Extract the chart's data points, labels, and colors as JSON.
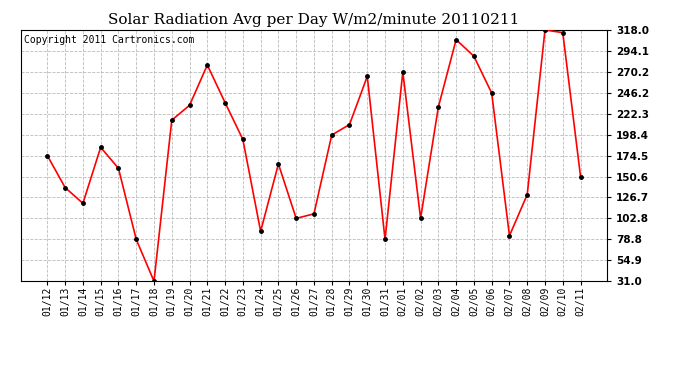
{
  "title": "Solar Radiation Avg per Day W/m2/minute 20110211",
  "copyright": "Copyright 2011 Cartronics.com",
  "dates": [
    "01/12",
    "01/13",
    "01/14",
    "01/15",
    "01/16",
    "01/17",
    "01/18",
    "01/19",
    "01/20",
    "01/21",
    "01/22",
    "01/23",
    "01/24",
    "01/25",
    "01/26",
    "01/27",
    "01/28",
    "01/29",
    "01/30",
    "01/31",
    "02/01",
    "02/02",
    "02/03",
    "02/04",
    "02/05",
    "02/06",
    "02/07",
    "02/08",
    "02/09",
    "02/10",
    "02/11"
  ],
  "values": [
    174.5,
    138.0,
    120.0,
    184.0,
    160.0,
    78.8,
    31.0,
    215.0,
    232.0,
    278.0,
    235.0,
    193.0,
    88.0,
    165.0,
    102.8,
    108.0,
    198.0,
    210.0,
    265.0,
    78.8,
    270.0,
    102.8,
    230.0,
    307.0,
    288.0,
    246.0,
    83.0,
    130.0,
    318.0,
    315.0,
    150.6
  ],
  "line_color": "#ff0000",
  "marker": "o",
  "marker_size": 2.5,
  "marker_color": "#000000",
  "ylim": [
    31.0,
    318.0
  ],
  "yticks": [
    31.0,
    54.9,
    78.8,
    102.8,
    126.7,
    150.6,
    174.5,
    198.4,
    222.3,
    246.2,
    270.2,
    294.1,
    318.0
  ],
  "background_color": "#ffffff",
  "grid_color": "#bbbbbb",
  "title_fontsize": 11,
  "copyright_fontsize": 7,
  "tick_fontsize": 7
}
